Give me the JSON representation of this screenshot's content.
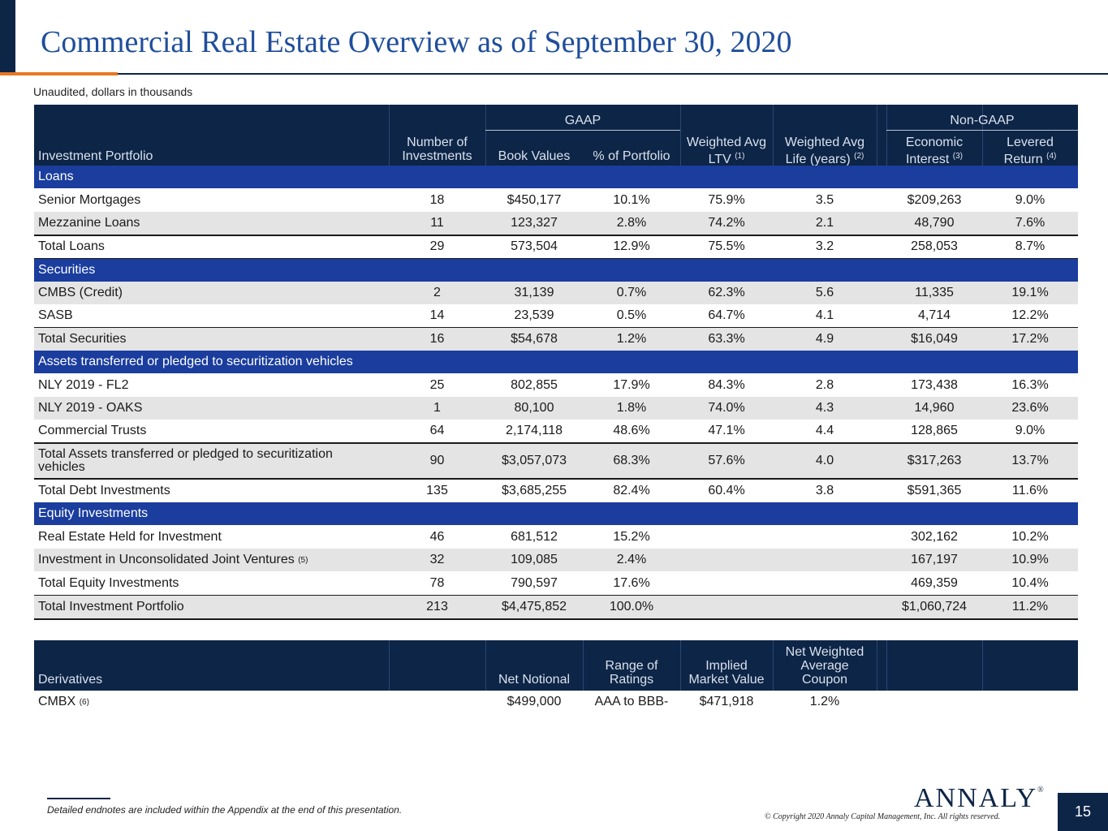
{
  "title": "Commercial Real Estate Overview as of September 30, 2020",
  "subtitle": "Unaudited, dollars in thousands",
  "header": {
    "group_gaap": "GAAP",
    "group_nongaap": "Non-GAAP",
    "col_portfolio": "Investment Portfolio",
    "col_count_1": "Number of",
    "col_count_2": "Investments",
    "col_book": "Book Values",
    "col_pct": "% of Portfolio",
    "col_ltv_1": "Weighted Avg",
    "col_ltv_2": "LTV",
    "col_ltv_note": "(1)",
    "col_life_1": "Weighted Avg",
    "col_life_2": "Life (years)",
    "col_life_note": "(2)",
    "col_econ_1": "Economic",
    "col_econ_2": "Interest",
    "col_econ_note": "(3)",
    "col_lev_1": "Levered",
    "col_lev_2": "Return",
    "col_lev_note": "(4)"
  },
  "sections": {
    "loans": "Loans",
    "securities": "Securities",
    "assets": "Assets transferred or pledged to securitization vehicles",
    "equity": "Equity Investments"
  },
  "rows": [
    {
      "name": "Senior Mortgages",
      "count": "18",
      "book": "$450,177",
      "pct": "10.1%",
      "ltv": "75.9%",
      "life": "3.5",
      "econ": "$209,263",
      "lev": "9.0%"
    },
    {
      "name": "Mezzanine Loans",
      "count": "11",
      "book": "123,327",
      "pct": "2.8%",
      "ltv": "74.2%",
      "life": "2.1",
      "econ": "48,790",
      "lev": "7.6%"
    },
    {
      "name": "Total Loans",
      "count": "29",
      "book": "573,504",
      "pct": "12.9%",
      "ltv": "75.5%",
      "life": "3.2",
      "econ": "258,053",
      "lev": "8.7%"
    },
    {
      "name": "CMBS (Credit)",
      "count": "2",
      "book": "31,139",
      "pct": "0.7%",
      "ltv": "62.3%",
      "life": "5.6",
      "econ": "11,335",
      "lev": "19.1%"
    },
    {
      "name": "SASB",
      "count": "14",
      "book": "23,539",
      "pct": "0.5%",
      "ltv": "64.7%",
      "life": "4.1",
      "econ": "4,714",
      "lev": "12.2%"
    },
    {
      "name": "Total Securities",
      "count": "16",
      "book": "$54,678",
      "pct": "1.2%",
      "ltv": "63.3%",
      "life": "4.9",
      "econ": "$16,049",
      "lev": "17.2%"
    },
    {
      "name": "NLY 2019 - FL2",
      "count": "25",
      "book": "802,855",
      "pct": "17.9%",
      "ltv": "84.3%",
      "life": "2.8",
      "econ": "173,438",
      "lev": "16.3%"
    },
    {
      "name": "NLY 2019 - OAKS",
      "count": "1",
      "book": "80,100",
      "pct": "1.8%",
      "ltv": "74.0%",
      "life": "4.3",
      "econ": "14,960",
      "lev": "23.6%"
    },
    {
      "name": "Commercial Trusts",
      "count": "64",
      "book": "2,174,118",
      "pct": "48.6%",
      "ltv": "47.1%",
      "life": "4.4",
      "econ": "128,865",
      "lev": "9.0%"
    },
    {
      "name_1": "Total Assets transferred or pledged to securitization",
      "name_2": "vehicles",
      "count": "90",
      "book": "$3,057,073",
      "pct": "68.3%",
      "ltv": "57.6%",
      "life": "4.0",
      "econ": "$317,263",
      "lev": "13.7%"
    },
    {
      "name": "Total Debt Investments",
      "count": "135",
      "book": "$3,685,255",
      "pct": "82.4%",
      "ltv": "60.4%",
      "life": "3.8",
      "econ": "$591,365",
      "lev": "11.6%"
    },
    {
      "name": "Real Estate Held for Investment",
      "count": "46",
      "book": "681,512",
      "pct": "15.2%",
      "econ": "302,162",
      "lev": "10.2%"
    },
    {
      "name": "Investment in Unconsolidated Joint Ventures",
      "note": "(5)",
      "count": "32",
      "book": "109,085",
      "pct": "2.4%",
      "econ": "167,197",
      "lev": "10.9%"
    },
    {
      "name": "Total Equity Investments",
      "count": "78",
      "book": "790,597",
      "pct": "17.6%",
      "econ": "469,359",
      "lev": "10.4%"
    },
    {
      "name": "Total Investment Portfolio",
      "count": "213",
      "book": "$4,475,852",
      "pct": "100.0%",
      "econ": "$1,060,724",
      "lev": "11.2%"
    }
  ],
  "derivatives": {
    "col_name": "Derivatives",
    "col_notional": "Net Notional",
    "col_range_1": "Range of",
    "col_range_2": "Ratings",
    "col_mv_1": "Implied",
    "col_mv_2": "Market Value",
    "col_coupon_1": "Net Weighted",
    "col_coupon_2": "Average",
    "col_coupon_3": "Coupon",
    "row": {
      "name": "CMBX",
      "note": "(6)",
      "notional": "$499,000",
      "range": "AAA to BBB-",
      "mv": "$471,918",
      "coupon": "1.2%"
    }
  },
  "footer": {
    "footnote": "Detailed endnotes are included within the Appendix at the end of this presentation.",
    "logo": "ANNALY",
    "logo_mark": "®",
    "copyright": "© Copyright 2020 Annaly Capital Management, Inc.  All rights reserved.",
    "page_number": "15"
  }
}
